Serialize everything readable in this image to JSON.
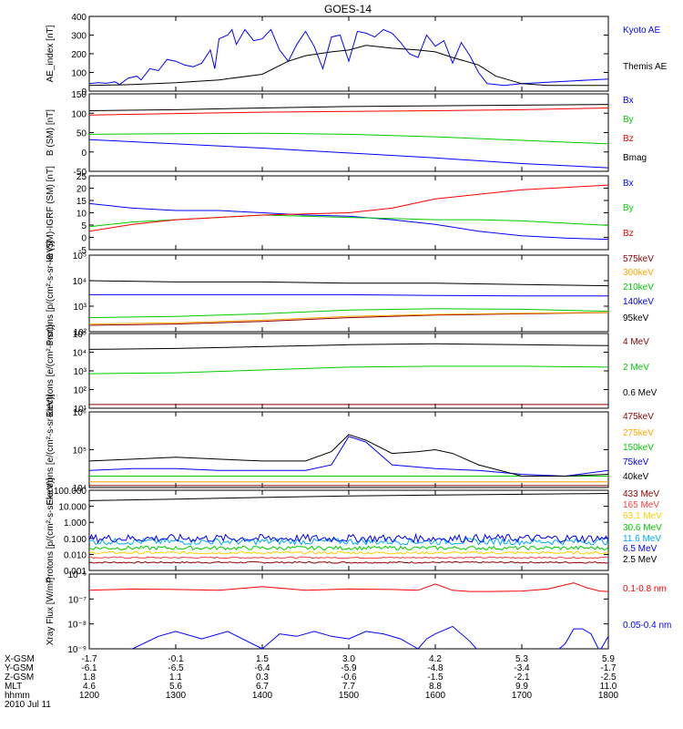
{
  "title": "GOES-14",
  "chart_data": [
    {
      "type": "line",
      "ylabel": "AE_index [nT]",
      "yticks": [
        "400",
        "300",
        "200",
        "100",
        "0"
      ],
      "ylim": [
        0,
        400
      ],
      "series": [
        {
          "name": "Kyoto AE",
          "color": "#0000ff",
          "x": [
            0,
            0.1,
            0.2,
            0.3,
            0.35,
            0.45,
            0.55,
            0.6,
            0.7,
            0.8,
            0.9,
            1.0,
            1.1,
            1.2,
            1.3,
            1.4,
            1.45,
            1.5,
            1.6,
            1.65,
            1.7,
            1.8,
            1.9,
            2.0,
            2.1,
            2.2,
            2.3,
            2.4,
            2.5,
            2.6,
            2.7,
            2.8,
            2.9,
            3.0,
            3.1,
            3.2,
            3.3,
            3.4,
            3.5,
            3.6,
            3.7,
            3.8,
            3.9,
            4.0,
            4.1,
            4.2,
            4.3,
            4.4,
            4.5,
            4.6,
            4.7,
            4.8,
            4.9,
            5.0,
            5.2,
            5.4,
            5.6,
            5.8,
            6.0
          ],
          "values": [
            40,
            45,
            42,
            50,
            35,
            70,
            80,
            60,
            120,
            110,
            170,
            160,
            140,
            130,
            150,
            220,
            120,
            280,
            300,
            330,
            250,
            330,
            270,
            280,
            330,
            220,
            160,
            250,
            320,
            240,
            120,
            290,
            300,
            160,
            320,
            310,
            290,
            330,
            310,
            260,
            200,
            180,
            300,
            240,
            270,
            150,
            260,
            190,
            100,
            40,
            35,
            30,
            35,
            40,
            45,
            50,
            55,
            60,
            65
          ]
        },
        {
          "name": "Themis AE",
          "color": "#000000",
          "x": [
            0,
            0.5,
            1.0,
            1.5,
            2.0,
            2.3,
            2.5,
            2.8,
            3.0,
            3.2,
            3.5,
            3.8,
            4.0,
            4.2,
            4.5,
            4.7,
            5.0,
            5.3,
            5.6,
            6.0
          ],
          "values": [
            30,
            35,
            45,
            60,
            90,
            160,
            190,
            210,
            220,
            245,
            230,
            220,
            210,
            180,
            140,
            80,
            40,
            30,
            30,
            30
          ]
        }
      ]
    },
    {
      "type": "line",
      "ylabel": "B (SM) [nT]",
      "yticks": [
        "150",
        "100",
        "50",
        "0",
        "-50"
      ],
      "ylim": [
        -60,
        160
      ],
      "series": [
        {
          "name": "Bx",
          "color": "#0000ff",
          "x": [
            0,
            1,
            2,
            3,
            4,
            5,
            6
          ],
          "values": [
            30,
            18,
            6,
            -8,
            -22,
            -38,
            -50
          ]
        },
        {
          "name": "By",
          "color": "#00cc00",
          "x": [
            0,
            1,
            2,
            3,
            4,
            5,
            6
          ],
          "values": [
            45,
            47,
            48,
            45,
            38,
            28,
            18
          ]
        },
        {
          "name": "Bz",
          "color": "#ff0000",
          "x": [
            0,
            1,
            2,
            3,
            4,
            5,
            6
          ],
          "values": [
            100,
            104,
            108,
            110,
            112,
            115,
            120
          ]
        },
        {
          "name": "Bmag",
          "color": "#000000",
          "x": [
            0,
            1,
            2,
            3,
            4,
            5,
            6
          ],
          "values": [
            112,
            115,
            120,
            124,
            126,
            128,
            130
          ]
        }
      ]
    },
    {
      "type": "line",
      "ylabel": "B (SM)-IGRF (SM) [nT]",
      "yticks": [
        "25",
        "20",
        "15",
        "10",
        "5",
        "0",
        "-5"
      ],
      "ylim": [
        -6,
        26
      ],
      "series": [
        {
          "name": "Bx",
          "color": "#0000ff",
          "x": [
            0,
            0.5,
            1,
            1.5,
            2,
            2.5,
            3,
            3.5,
            4,
            4.5,
            5,
            5.5,
            6
          ],
          "values": [
            14,
            12,
            11,
            11,
            10,
            9,
            8.5,
            7,
            5,
            2,
            0,
            -1,
            -1.5
          ]
        },
        {
          "name": "By",
          "color": "#00cc00",
          "x": [
            0,
            0.5,
            1,
            1.5,
            2,
            2.5,
            3,
            3.5,
            4,
            4.5,
            5,
            5.5,
            6
          ],
          "values": [
            4,
            6,
            7,
            8,
            9,
            8.5,
            8,
            7.5,
            7,
            7,
            6.5,
            5.5,
            4.5
          ]
        },
        {
          "name": "Bz",
          "color": "#ff0000",
          "x": [
            0,
            0.5,
            1,
            1.5,
            2,
            2.5,
            3,
            3.5,
            4,
            4.5,
            5,
            5.5,
            6
          ],
          "values": [
            2,
            5,
            7,
            8,
            9,
            9.5,
            10,
            12,
            16,
            18,
            20,
            21,
            22
          ]
        }
      ]
    },
    {
      "type": "line",
      "log": true,
      "ylabel": "Protons [p/(cm²-s-sr-keV)]",
      "yticks": [
        "10⁵",
        "10⁴",
        "10³",
        "10²"
      ],
      "ylim": [
        2,
        5
      ],
      "series": [
        {
          "name": "575keV",
          "color": "#8b0000",
          "x": [
            0,
            1,
            2,
            3,
            4,
            5,
            6
          ],
          "values": [
            2.25,
            2.3,
            2.4,
            2.55,
            2.65,
            2.7,
            2.75
          ]
        },
        {
          "name": "300keV",
          "color": "#ffa500",
          "x": [
            0,
            1,
            2,
            3,
            4,
            5,
            6
          ],
          "values": [
            2.3,
            2.35,
            2.45,
            2.6,
            2.68,
            2.72,
            2.76
          ]
        },
        {
          "name": "210keV",
          "color": "#00cc00",
          "x": [
            0,
            1,
            2,
            3,
            4,
            5,
            6
          ],
          "values": [
            2.55,
            2.6,
            2.7,
            2.85,
            2.9,
            2.88,
            2.8
          ]
        },
        {
          "name": "140keV",
          "color": "#0000ff",
          "x": [
            0,
            1,
            2,
            3,
            4,
            5,
            6
          ],
          "values": [
            3.45,
            3.45,
            3.45,
            3.45,
            3.42,
            3.4,
            3.4
          ]
        },
        {
          "name": "95keV",
          "color": "#000000",
          "x": [
            0,
            1,
            2,
            3,
            4,
            5,
            6
          ],
          "values": [
            4.0,
            3.95,
            3.95,
            3.9,
            3.9,
            3.85,
            3.8
          ]
        }
      ]
    },
    {
      "type": "line",
      "log": true,
      "ylabel": "Electrons [e/(cm²-s-sr)]",
      "yticks": [
        "10⁵",
        "10⁴",
        "10³",
        "10²",
        "10¹"
      ],
      "ylim": [
        1,
        5
      ],
      "series": [
        {
          "name": "4 MeV",
          "color": "#8b0000",
          "x": [
            0,
            1,
            2,
            3,
            4,
            5,
            6
          ],
          "values": [
            1.2,
            1.2,
            1.2,
            1.2,
            1.2,
            1.2,
            1.2
          ]
        },
        {
          "name": "2 MeV",
          "color": "#00cc00",
          "x": [
            0,
            1,
            2,
            3,
            4,
            5,
            6
          ],
          "values": [
            2.85,
            2.9,
            3.05,
            3.2,
            3.25,
            3.25,
            3.2
          ]
        },
        {
          "name": "0.6 MeV",
          "color": "#000000",
          "x": [
            0,
            1,
            2,
            3,
            4,
            5,
            6
          ],
          "values": [
            4.15,
            4.2,
            4.3,
            4.4,
            4.45,
            4.4,
            4.35
          ]
        }
      ]
    },
    {
      "type": "line",
      "log": true,
      "ylabel": "Electrons [e/(cm²-s-sr-keV)]",
      "yticks": [
        "10⁶",
        "10⁵",
        "10⁴"
      ],
      "ylim": [
        4,
        6
      ],
      "series": [
        {
          "name": "475keV",
          "color": "#8b0000",
          "x": [
            0,
            1,
            2,
            3,
            4,
            5,
            6
          ],
          "values": [
            4.05,
            4.05,
            4.05,
            4.05,
            4.05,
            4.05,
            4.05
          ]
        },
        {
          "name": "275keV",
          "color": "#ffa500",
          "x": [
            0,
            1,
            2,
            3,
            4,
            5,
            6
          ],
          "values": [
            4.15,
            4.15,
            4.15,
            4.15,
            4.15,
            4.15,
            4.15
          ]
        },
        {
          "name": "150keV",
          "color": "#00cc00",
          "x": [
            0,
            1,
            2,
            3,
            4,
            5,
            6
          ],
          "values": [
            4.3,
            4.3,
            4.3,
            4.3,
            4.3,
            4.3,
            4.3
          ]
        },
        {
          "name": "75keV",
          "color": "#0000ff",
          "x": [
            0,
            0.5,
            1,
            1.5,
            2,
            2.5,
            2.8,
            3.0,
            3.2,
            3.5,
            4,
            4.5,
            5,
            5.5,
            6
          ],
          "values": [
            4.45,
            4.5,
            4.5,
            4.45,
            4.45,
            4.45,
            4.6,
            5.35,
            5.2,
            4.6,
            4.5,
            4.45,
            4.35,
            4.3,
            4.45
          ]
        },
        {
          "name": "40keV",
          "color": "#000000",
          "x": [
            0,
            0.5,
            1,
            1.5,
            2,
            2.5,
            2.8,
            3.0,
            3.2,
            3.5,
            3.8,
            4.0,
            4.2,
            4.5,
            5,
            5.5,
            6
          ],
          "values": [
            4.7,
            4.75,
            4.8,
            4.75,
            4.7,
            4.7,
            4.95,
            5.4,
            5.25,
            4.9,
            4.95,
            5.0,
            4.9,
            4.6,
            4.3,
            4.3,
            4.35
          ]
        }
      ]
    },
    {
      "type": "line",
      "log": true,
      "ylabel": "Protons [p/(cm²-s-sr-keV)]",
      "yticks": [
        "100.000",
        "10.000",
        "1.000",
        "0.100",
        "0.010",
        "0.001"
      ],
      "ylim": [
        -3,
        2
      ],
      "series": [
        {
          "name": "433 MeV",
          "color": "#8b0000",
          "x": [
            0,
            6
          ],
          "values": [
            -2.5,
            -2.5
          ],
          "noise": 0.05
        },
        {
          "name": "165 MeV",
          "color": "#ff4040",
          "x": [
            0,
            6
          ],
          "values": [
            -2.2,
            -2.2
          ],
          "noise": 0.05
        },
        {
          "name": "63.1 MeV",
          "color": "#ffd000",
          "x": [
            0,
            6
          ],
          "values": [
            -1.9,
            -1.9
          ],
          "noise": 0.08
        },
        {
          "name": "30.6 MeV",
          "color": "#00cc00",
          "x": [
            0,
            6
          ],
          "values": [
            -1.6,
            -1.6
          ],
          "noise": 0.12
        },
        {
          "name": "11.6 MeV",
          "color": "#00aaff",
          "x": [
            0,
            6
          ],
          "values": [
            -1.2,
            -1.2
          ],
          "noise": 0.2
        },
        {
          "name": "6.5 MeV",
          "color": "#0000ff",
          "x": [
            0,
            6
          ],
          "values": [
            -1.0,
            -1.0
          ],
          "noise": 0.25
        },
        {
          "name": "2.5 MeV",
          "color": "#000000",
          "x": [
            0,
            1,
            2,
            3,
            4,
            5,
            6
          ],
          "values": [
            1.35,
            1.45,
            1.55,
            1.65,
            1.7,
            1.75,
            1.8
          ]
        }
      ]
    },
    {
      "type": "line",
      "log": true,
      "ylabel": "Xray Flux [W/m²]",
      "yticks": [
        "10⁻⁶",
        "10⁻⁷",
        "10⁻⁸",
        "10⁻⁹"
      ],
      "ylim": [
        -9,
        -6
      ],
      "series": [
        {
          "name": "0.1-0.8 nm",
          "color": "#ff0000",
          "x": [
            0,
            0.5,
            1,
            1.5,
            2,
            2.5,
            3,
            3.5,
            3.8,
            4.0,
            4.2,
            4.4,
            4.6,
            5,
            5.3,
            5.6,
            5.75,
            5.9,
            6
          ],
          "values": [
            -6.65,
            -6.6,
            -6.62,
            -6.65,
            -6.5,
            -6.65,
            -6.6,
            -6.62,
            -6.65,
            -6.4,
            -6.65,
            -6.7,
            -6.7,
            -6.68,
            -6.6,
            -6.35,
            -6.55,
            -6.68,
            -6.7
          ]
        },
        {
          "name": "0.05-0.4 nm",
          "color": "#0000ff",
          "x": [
            0,
            0.3,
            0.5,
            0.8,
            1.0,
            1.3,
            1.6,
            2.0,
            2.2,
            2.4,
            2.6,
            2.8,
            3.0,
            3.2,
            3.4,
            3.6,
            3.8,
            3.9,
            4.0,
            4.2,
            4.4,
            4.5,
            4.8,
            5.0,
            5.2,
            5.4,
            5.5,
            5.6,
            5.7,
            5.8,
            5.9,
            6
          ],
          "values": [
            -9.1,
            -9.1,
            -9,
            -8.5,
            -8.3,
            -8.6,
            -8.3,
            -9,
            -8.4,
            -8.5,
            -8.3,
            -8.5,
            -8.6,
            -8.3,
            -8.4,
            -8.6,
            -9,
            -8.6,
            -8.4,
            -8.1,
            -8.7,
            -9.1,
            -9.1,
            -9.1,
            -9.1,
            -9.1,
            -8.8,
            -8.2,
            -8.2,
            -8.4,
            -9.1,
            -8.5
          ]
        }
      ]
    }
  ],
  "x_axis": {
    "rows": [
      {
        "label": "X-GSM",
        "values": [
          "-1.7",
          "-0.1",
          "1.5",
          "3.0",
          "4.2",
          "5.3",
          "5.9"
        ]
      },
      {
        "label": "Y-GSM",
        "values": [
          "-6.1",
          "-6.5",
          "-6.4",
          "-5.9",
          "-4.8",
          "-3.4",
          "-1.7"
        ]
      },
      {
        "label": "Z-GSM",
        "values": [
          "1.8",
          "1.1",
          "0.3",
          "-0.6",
          "-1.5",
          "-2.1",
          "-2.5"
        ]
      },
      {
        "label": "MLT",
        "values": [
          "4.6",
          "5.6",
          "6.7",
          "7.7",
          "8.8",
          "9.9",
          "11.0"
        ]
      },
      {
        "label": "hhmm",
        "values": [
          "1200",
          "1300",
          "1400",
          "1500",
          "1600",
          "1700",
          "1800"
        ]
      }
    ],
    "date": "2010 Jul 11"
  }
}
